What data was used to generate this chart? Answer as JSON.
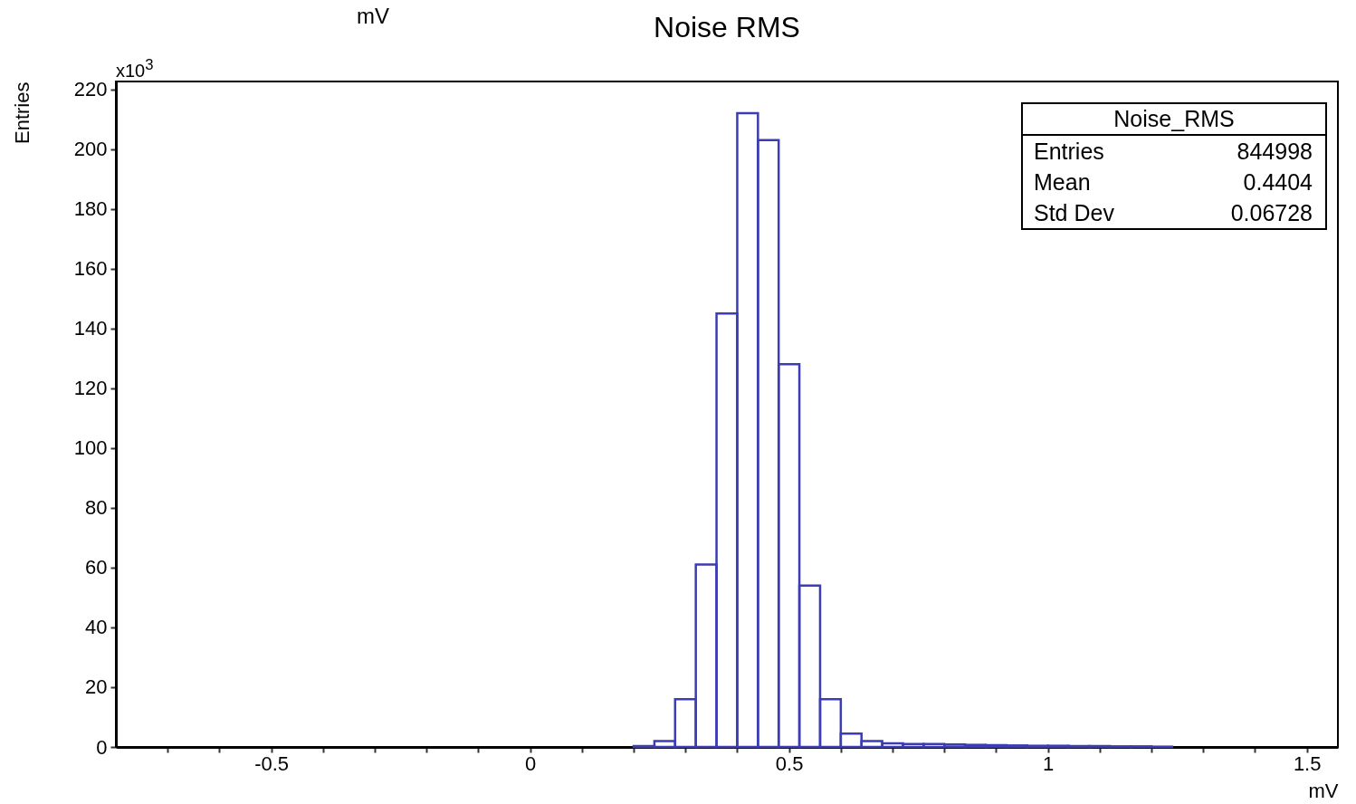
{
  "chart_data": {
    "type": "histogram",
    "title": "Noise RMS",
    "xlabel": "mV",
    "ylabel": "Entries",
    "bins": [
      0.2,
      0.24,
      0.28,
      0.32,
      0.36,
      0.4,
      0.44,
      0.48,
      0.52,
      0.56,
      0.6,
      0.64,
      0.68,
      0.72,
      0.76,
      0.8,
      0.84,
      0.88,
      0.92,
      0.96,
      1.0,
      1.04,
      1.08,
      1.12,
      1.16,
      1.2,
      1.24
    ],
    "values": [
      0.3,
      2,
      16,
      61,
      145,
      212,
      203,
      128,
      54,
      16,
      4.5,
      2,
      1.2,
      1,
      1,
      0.8,
      0.7,
      0.6,
      0.5,
      0.4,
      0.4,
      0.3,
      0.3,
      0.2,
      0.2,
      0.1
    ],
    "color": "#3c3cb4",
    "xlim": [
      -0.8,
      1.56
    ],
    "ylim": [
      0,
      222.6
    ],
    "xticks": [
      {
        "value": -0.7,
        "label": null
      },
      {
        "value": -0.6,
        "label": null
      },
      -0.5,
      {
        "value": -0.4,
        "label": null
      },
      {
        "value": -0.3,
        "label": null
      },
      {
        "value": -0.2,
        "label": null
      },
      {
        "value": -0.1,
        "label": null
      },
      0,
      {
        "value": 0.1,
        "label": null
      },
      {
        "value": 0.2,
        "label": null
      },
      {
        "value": 0.3,
        "label": null
      },
      {
        "value": 0.4,
        "label": null
      },
      0.5,
      {
        "value": 0.6,
        "label": null
      },
      {
        "value": 0.7,
        "label": null
      },
      {
        "value": 0.8,
        "label": null
      },
      {
        "value": 0.9,
        "label": null
      },
      1,
      {
        "value": 1.1,
        "label": null
      },
      {
        "value": 1.2,
        "label": null
      },
      {
        "value": 1.3,
        "label": null
      },
      {
        "value": 1.4,
        "label": null
      },
      1.5
    ],
    "yticks": [
      0,
      20,
      40,
      60,
      80,
      100,
      120,
      140,
      160,
      180,
      200,
      220
    ],
    "grid": false,
    "annotations": [
      "mV",
      "x10$^{3}$",
      "Noise_RMS",
      "Entries",
      "844998",
      "Mean",
      "0.4404",
      "Std Dev",
      "0.06728"
    ]
  }
}
